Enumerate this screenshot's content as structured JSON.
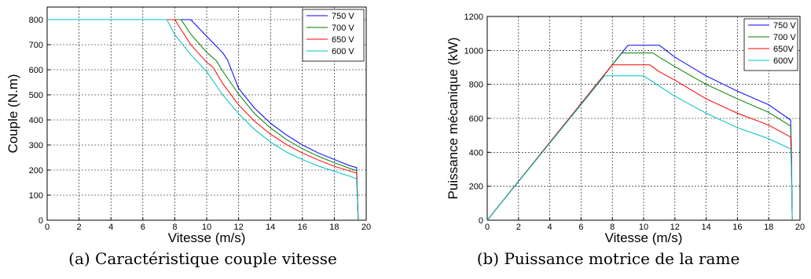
{
  "panels": [
    {
      "caption": "(a) Caractéristique couple vitesse",
      "chart_data": {
        "type": "line",
        "title": "",
        "xlabel": "Vitesse (m/s)",
        "ylabel": "Couple (N.m)",
        "xlim": [
          0,
          20
        ],
        "ylim": [
          0,
          850
        ],
        "xticks": [
          0,
          2,
          4,
          6,
          8,
          10,
          12,
          14,
          16,
          18,
          20
        ],
        "yticks": [
          0,
          100,
          200,
          300,
          400,
          500,
          600,
          700,
          800
        ],
        "grid": true,
        "legend_position": "top-right",
        "series": [
          {
            "name": "750 V",
            "color": "#0000ff",
            "x": [
              0,
              9.0,
              10.0,
              11.0,
              11.3,
              12.0,
              13.0,
              14.0,
              15.0,
              16.0,
              17.0,
              18.0,
              19.0,
              19.4,
              19.45,
              19.5
            ],
            "y": [
              800,
              800,
              733,
              668,
              640,
              526,
              447,
              387,
              340,
              300,
              268,
              242,
              217,
              210,
              100,
              0
            ]
          },
          {
            "name": "700 V",
            "color": "#008000",
            "x": [
              0,
              8.4,
              9.0,
              10.0,
              10.6,
              11.0,
              12.0,
              13.0,
              14.0,
              15.0,
              16.0,
              17.0,
              18.0,
              19.0,
              19.4,
              19.45,
              19.5
            ],
            "y": [
              800,
              800,
              742,
              670,
              636,
              595,
              503,
              425,
              368,
              322,
              285,
              255,
              229,
              206,
              198,
              100,
              0
            ]
          },
          {
            "name": "650 V",
            "color": "#ff0000",
            "x": [
              0,
              8.0,
              9.0,
              10.0,
              10.4,
              11.0,
              12.0,
              13.0,
              14.0,
              15.0,
              16.0,
              17.0,
              18.0,
              19.0,
              19.4,
              19.45,
              19.5
            ],
            "y": [
              800,
              800,
              700,
              630,
              610,
              545,
              460,
              395,
              343,
              302,
              268,
              240,
              215,
              196,
              188,
              100,
              0
            ]
          },
          {
            "name": "600 V",
            "color": "#00c0c0",
            "x": [
              0,
              7.5,
              8.0,
              9.0,
              10.0,
              11.0,
              12.0,
              13.0,
              14.0,
              15.0,
              16.0,
              17.0,
              18.0,
              19.0,
              19.4,
              19.45,
              19.5
            ],
            "y": [
              800,
              800,
              740,
              660,
              593,
              500,
              425,
              362,
              312,
              272,
              242,
              216,
              195,
              175,
              165,
              80,
              0
            ]
          }
        ]
      }
    },
    {
      "caption": "(b) Puissance motrice de la rame",
      "chart_data": {
        "type": "line",
        "title": "",
        "xlabel": "Vitesse (m/s)",
        "ylabel": "Puissance mécanique (kW)",
        "xlim": [
          0,
          20
        ],
        "ylim": [
          0,
          1200
        ],
        "xticks": [
          0,
          2,
          4,
          6,
          8,
          10,
          12,
          14,
          16,
          18,
          20
        ],
        "yticks": [
          0,
          200,
          400,
          600,
          800,
          1000,
          1200
        ],
        "grid": true,
        "legend_position": "top-right",
        "series": [
          {
            "name": "750 V",
            "color": "#0000ff",
            "x": [
              0,
              9.0,
              11.0,
              11.3,
              12.0,
              14.0,
              16.0,
              18.0,
              19.4,
              19.45,
              19.5
            ],
            "y": [
              0,
              1030,
              1030,
              1010,
              960,
              850,
              760,
              680,
              590,
              400,
              0
            ]
          },
          {
            "name": "700 V",
            "color": "#008000",
            "x": [
              0,
              8.6,
              10.6,
              11.0,
              12.0,
              14.0,
              16.0,
              18.0,
              19.4,
              19.45,
              19.5
            ],
            "y": [
              0,
              985,
              985,
              960,
              905,
              800,
              715,
              635,
              555,
              380,
              0
            ]
          },
          {
            "name": "650V",
            "color": "#ff0000",
            "x": [
              0,
              8.0,
              10.4,
              11.0,
              12.0,
              14.0,
              16.0,
              18.0,
              19.4,
              19.45,
              19.5
            ],
            "y": [
              0,
              915,
              915,
              875,
              825,
              715,
              630,
              560,
              490,
              350,
              0
            ]
          },
          {
            "name": "600V",
            "color": "#00c0c0",
            "x": [
              0,
              7.5,
              10.0,
              11.0,
              12.0,
              14.0,
              16.0,
              18.0,
              19.4,
              19.45,
              19.5
            ],
            "y": [
              0,
              850,
              850,
              790,
              730,
              630,
              545,
              480,
              420,
              300,
              0
            ]
          }
        ]
      }
    }
  ]
}
